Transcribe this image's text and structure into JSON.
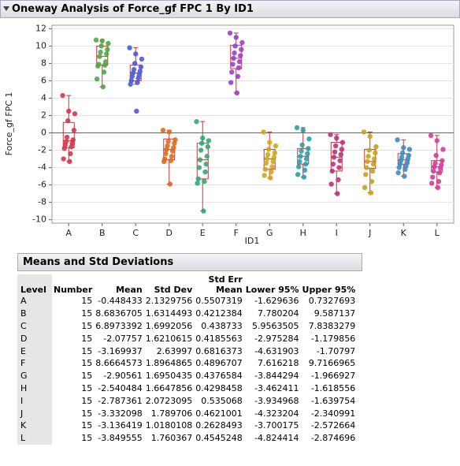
{
  "header": {
    "title": "Oneway Analysis of Force_gf FPC 1 By ID1"
  },
  "chart_data": {
    "type": "box",
    "xlabel": "ID1",
    "ylabel": "Force_gf FPC 1",
    "categories": [
      "A",
      "B",
      "C",
      "D",
      "E",
      "F",
      "G",
      "H",
      "I",
      "J",
      "K",
      "L"
    ],
    "ylim": [
      -10.4,
      12.4
    ],
    "yticks": [
      -10,
      -8,
      -6,
      -4,
      -2,
      0,
      2,
      4,
      6,
      8,
      10,
      12
    ],
    "grid": true,
    "box_color": "#c8323c",
    "groups": [
      {
        "color": "#d0394a",
        "points": [
          4.3,
          2.5,
          2.2,
          1.4,
          0.3,
          -0.5,
          -0.8,
          -1.0,
          -1.2,
          -1.4,
          -1.6,
          -1.8,
          -2.4,
          -3.0,
          -3.3
        ],
        "box": {
          "min": -3.3,
          "q1": -1.7,
          "median": -0.9,
          "q3": 1.2,
          "max": 4.3
        }
      },
      {
        "color": "#4fa845",
        "points": [
          10.7,
          10.6,
          10.3,
          10.0,
          9.6,
          9.3,
          9.1,
          8.8,
          8.2,
          7.9,
          7.8,
          7.7,
          7.0,
          6.2,
          5.3
        ],
        "box": {
          "min": 5.3,
          "q1": 7.8,
          "median": 8.8,
          "q3": 10.0,
          "max": 10.7
        }
      },
      {
        "color": "#4a5bd6",
        "points": [
          9.8,
          9.1,
          8.5,
          8.0,
          7.6,
          7.3,
          7.1,
          6.9,
          6.7,
          6.5,
          6.3,
          6.0,
          5.8,
          5.6,
          2.5
        ],
        "box": {
          "min": 5.6,
          "q1": 6.0,
          "median": 6.9,
          "q3": 7.8,
          "max": 9.8
        }
      },
      {
        "color": "#e06a1e",
        "points": [
          0.3,
          0.1,
          -0.8,
          -1.0,
          -1.2,
          -1.5,
          -1.7,
          -1.9,
          -2.1,
          -2.4,
          -2.7,
          -3.0,
          -3.2,
          -3.3,
          -5.9
        ],
        "box": {
          "min": -5.9,
          "q1": -3.1,
          "median": -1.9,
          "q3": -0.7,
          "max": 0.3
        }
      },
      {
        "color": "#2faa74",
        "points": [
          1.3,
          -0.6,
          -0.9,
          -1.2,
          -1.6,
          -2.0,
          -2.7,
          -3.1,
          -3.6,
          -4.0,
          -4.5,
          -5.3,
          -5.6,
          -5.8,
          -9.0
        ],
        "box": {
          "min": -9.0,
          "q1": -5.3,
          "median": -3.1,
          "q3": -1.2,
          "max": 1.3
        }
      },
      {
        "color": "#9c3fc9",
        "points": [
          11.5,
          11.0,
          10.4,
          10.0,
          9.6,
          9.2,
          8.9,
          8.6,
          8.2,
          7.9,
          7.5,
          7.0,
          6.5,
          5.8,
          4.6
        ],
        "box": {
          "min": 4.6,
          "q1": 7.4,
          "median": 8.6,
          "q3": 10.1,
          "max": 11.5
        }
      },
      {
        "color": "#d4a51c",
        "points": [
          0.1,
          -1.1,
          -1.5,
          -1.9,
          -2.3,
          -2.5,
          -2.8,
          -3.0,
          -3.3,
          -3.5,
          -3.9,
          -4.2,
          -4.5,
          -4.9,
          -5.2
        ],
        "box": {
          "min": -5.2,
          "q1": -4.2,
          "median": -3.0,
          "q3": -1.9,
          "max": 0.1
        }
      },
      {
        "color": "#2a9fa8",
        "points": [
          0.6,
          0.3,
          -0.7,
          -1.4,
          -1.8,
          -2.1,
          -2.4,
          -2.7,
          -3.0,
          -3.3,
          -3.6,
          -3.9,
          -4.3,
          -4.8,
          -5.1
        ],
        "box": {
          "min": -5.1,
          "q1": -3.6,
          "median": -2.7,
          "q3": -1.8,
          "max": 0.6
        }
      },
      {
        "color": "#c0307a",
        "points": [
          -0.2,
          -0.6,
          -1.1,
          -1.5,
          -1.9,
          -2.2,
          -2.5,
          -2.8,
          -3.2,
          -3.6,
          -4.0,
          -4.4,
          -5.4,
          -5.9,
          -7.0
        ],
        "box": {
          "min": -7.0,
          "q1": -4.4,
          "median": -2.8,
          "q3": -1.1,
          "max": -0.2
        }
      },
      {
        "color": "#c6a21c",
        "points": [
          0.1,
          -0.4,
          -1.6,
          -2.0,
          -2.3,
          -2.7,
          -3.0,
          -3.3,
          -3.6,
          -4.0,
          -4.4,
          -4.8,
          -5.6,
          -6.3,
          -6.9
        ],
        "box": {
          "min": -6.9,
          "q1": -4.1,
          "median": -3.3,
          "q3": -1.9,
          "max": 0.1
        }
      },
      {
        "color": "#3d8cc0",
        "points": [
          -0.8,
          -1.7,
          -1.9,
          -2.3,
          -2.6,
          -2.8,
          -3.0,
          -3.2,
          -3.4,
          -3.6,
          -3.8,
          -4.0,
          -4.2,
          -4.6,
          -5.0
        ],
        "box": {
          "min": -5.0,
          "q1": -3.6,
          "median": -3.1,
          "q3": -2.4,
          "max": -0.8
        }
      },
      {
        "color": "#d63aa0",
        "points": [
          -0.3,
          -0.9,
          -1.9,
          -2.6,
          -3.2,
          -3.5,
          -3.7,
          -3.9,
          -4.1,
          -4.4,
          -4.6,
          -5.1,
          -5.6,
          -5.8,
          -6.3
        ],
        "box": {
          "min": -6.3,
          "q1": -4.5,
          "median": -3.9,
          "q3": -3.2,
          "max": -0.3
        }
      }
    ]
  },
  "table": {
    "title": "Means and Std Deviations",
    "columns": [
      "Level",
      "Number",
      "Mean",
      "Std Dev",
      "Std Err Mean",
      "Lower 95%",
      "Upper 95%"
    ],
    "rows": [
      [
        "A",
        15,
        -0.448433,
        2.1329756,
        0.5507319,
        -1.629636,
        0.7327693
      ],
      [
        "B",
        15,
        8.6836705,
        1.6314493,
        0.4212384,
        7.780204,
        9.587137
      ],
      [
        "C",
        15,
        6.8973392,
        1.6992056,
        0.438733,
        5.9563505,
        7.8383279
      ],
      [
        "D",
        15,
        -2.07757,
        1.6210615,
        0.4185563,
        -2.975284,
        -1.179856
      ],
      [
        "E",
        15,
        -3.169937,
        2.63997,
        0.6816373,
        -4.631903,
        -1.70797
      ],
      [
        "F",
        15,
        8.6664573,
        1.8964865,
        0.4896707,
        7.616218,
        9.7166965
      ],
      [
        "G",
        15,
        -2.90561,
        1.6950435,
        0.4376584,
        -3.844294,
        -1.966927
      ],
      [
        "H",
        15,
        -2.540484,
        1.6647856,
        0.4298458,
        -3.462411,
        -1.618556
      ],
      [
        "I",
        15,
        -2.787361,
        2.0723095,
        0.535068,
        -3.934968,
        -1.639754
      ],
      [
        "J",
        15,
        -3.332098,
        1.789706,
        0.4621001,
        -4.323204,
        -2.340991
      ],
      [
        "K",
        15,
        -3.136419,
        1.0180108,
        0.2628493,
        -3.700175,
        -2.572664
      ],
      [
        "L",
        15,
        -3.849555,
        1.760367,
        0.4545248,
        -4.824414,
        -2.874696
      ]
    ]
  }
}
